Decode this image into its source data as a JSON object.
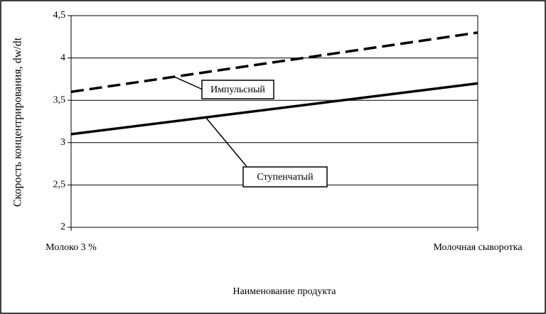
{
  "chart_data": {
    "type": "line",
    "x_label": "Наименование продукта",
    "y_label": "Скорость концентрирования, dw/dt",
    "categories": [
      "Молоко 3 %",
      "Молочная сыворотка"
    ],
    "series": [
      {
        "name": "Импульсный",
        "color": "#000000",
        "dash": true,
        "values": [
          3.6,
          4.3
        ]
      },
      {
        "name": "Ступенчатый",
        "color": "#000000",
        "dash": false,
        "values": [
          3.1,
          3.7
        ]
      }
    ],
    "ylim": [
      2,
      4.5
    ],
    "yticks": [
      2,
      {
        "value": 2.5,
        "label": "2,5"
      },
      3,
      {
        "value": 3.5,
        "label": "3,5"
      },
      4,
      {
        "value": 4.5,
        "label": "4,5"
      }
    ],
    "grid": true
  }
}
